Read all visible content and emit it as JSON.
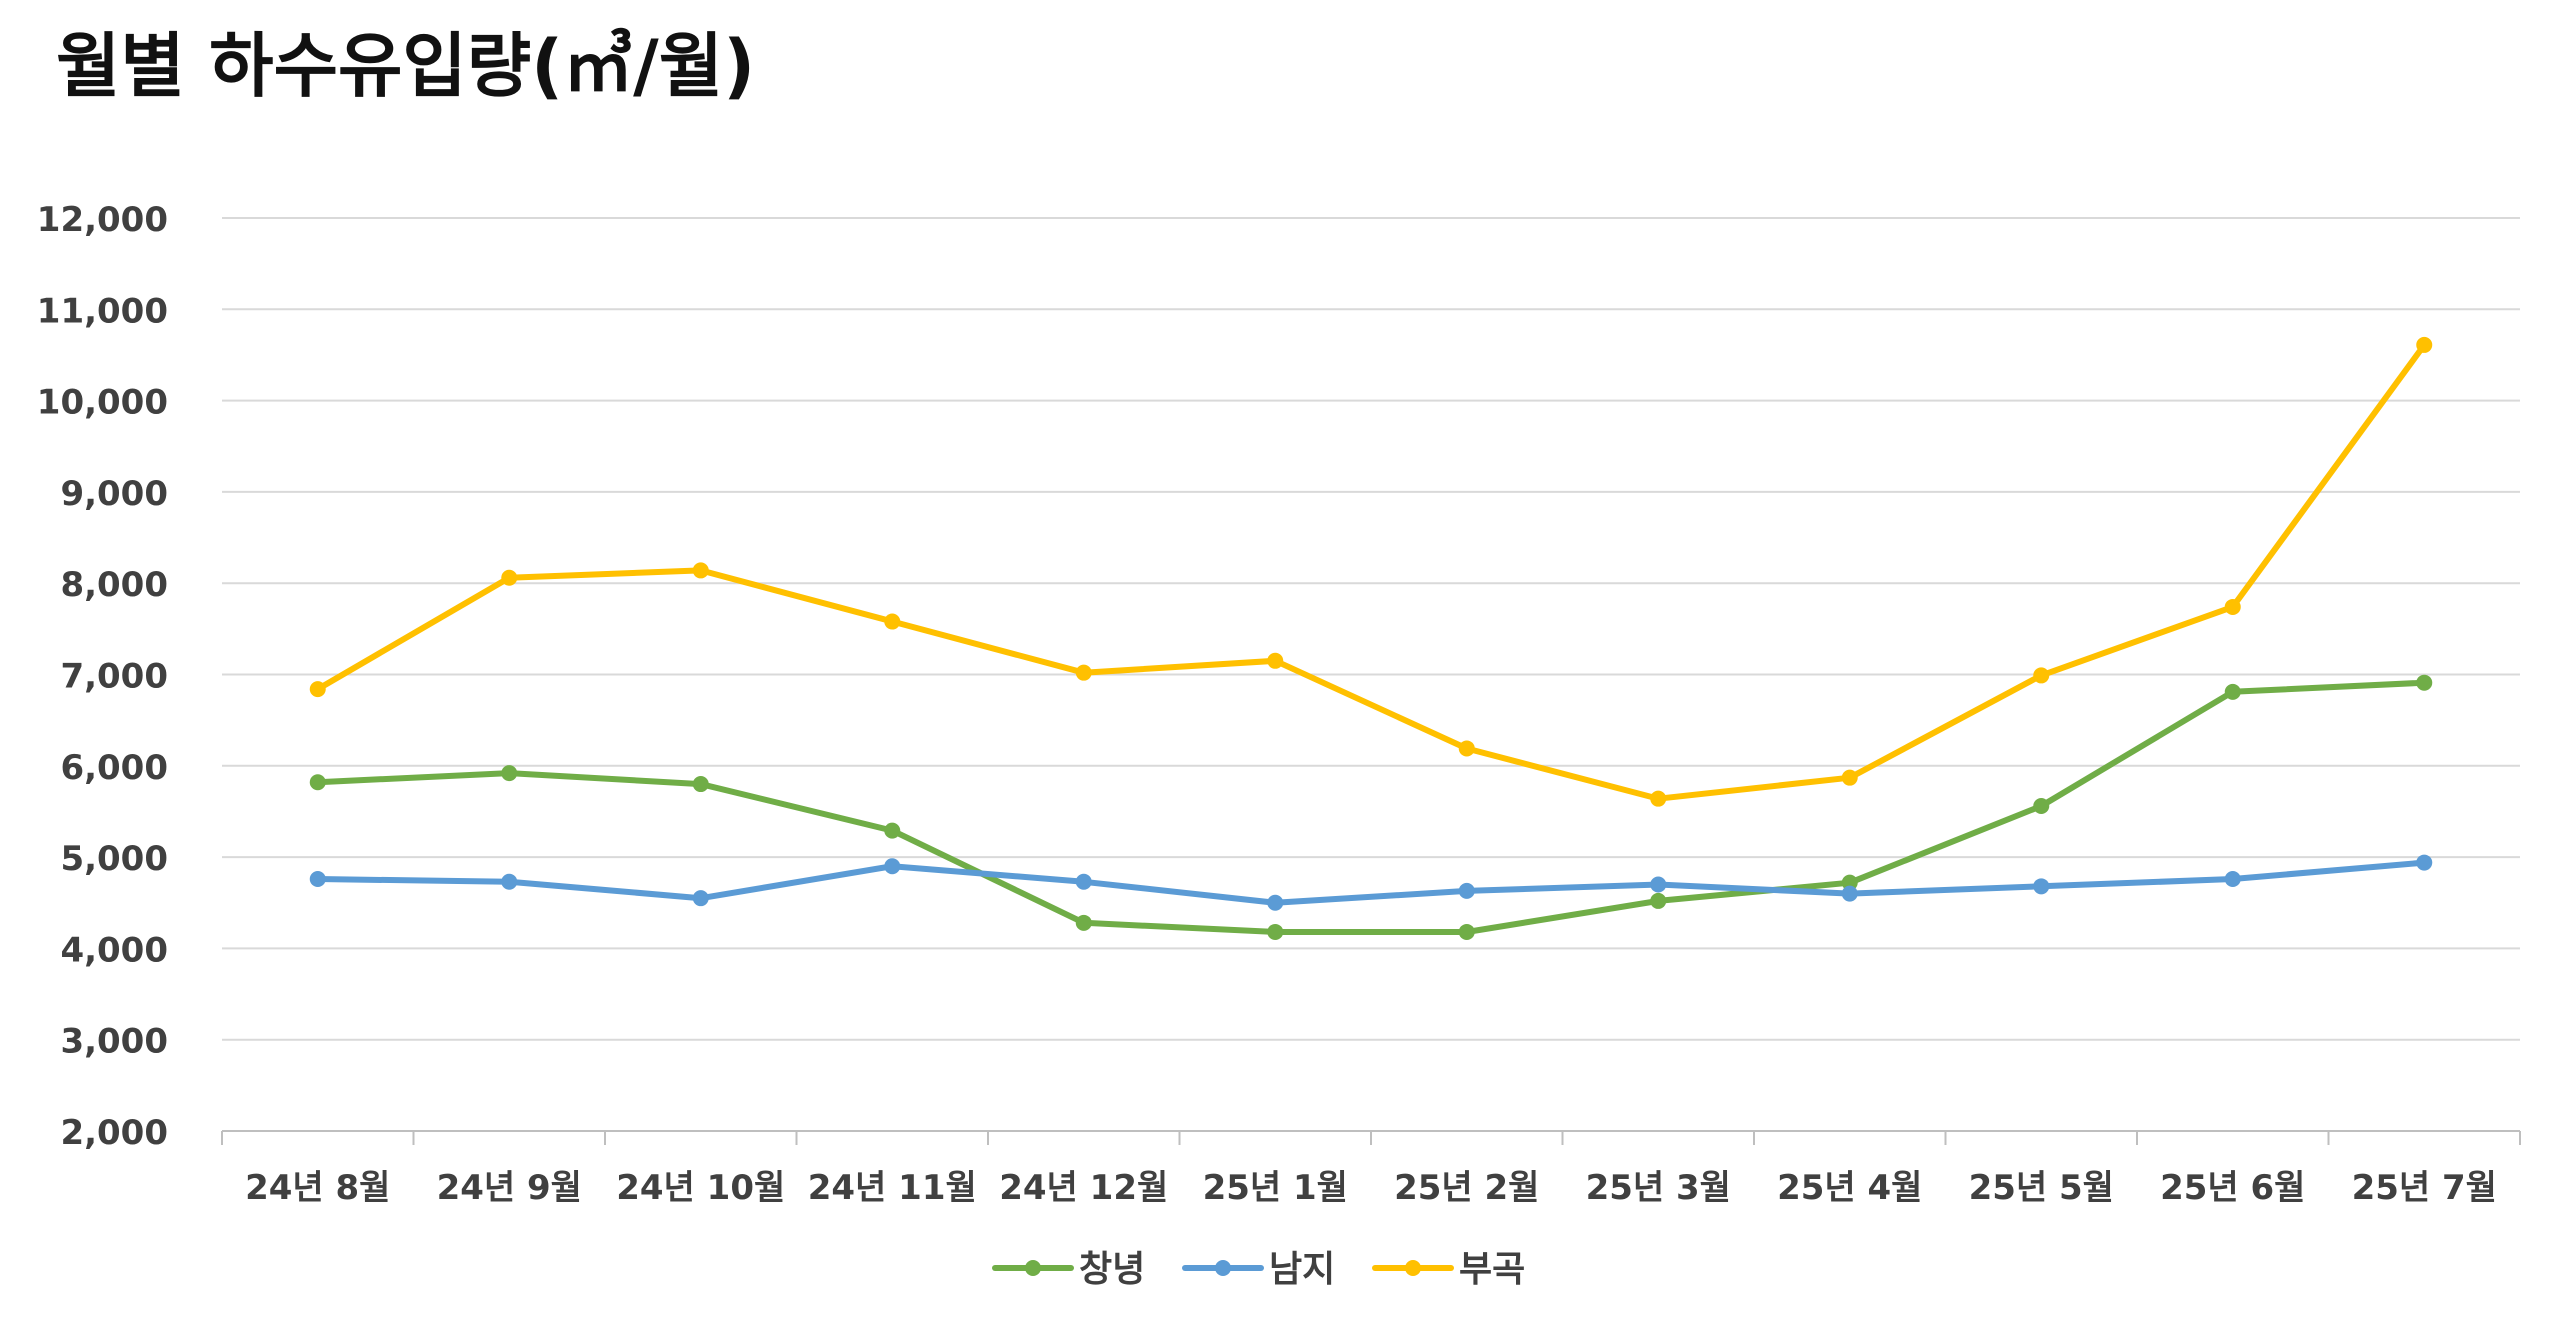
{
  "chart_data": {
    "type": "line",
    "title": "월별 하수유입량(㎥/월)",
    "xlabel": "",
    "ylabel": "",
    "categories": [
      "24년 8월",
      "24년 9월",
      "24년 10월",
      "24년 11월",
      "24년 12월",
      "25년 1월",
      "25년 2월",
      "25년 3월",
      "25년 4월",
      "25년 5월",
      "25년 6월",
      "25년 7월"
    ],
    "ylim": [
      2000,
      12000
    ],
    "yticks": [
      2000,
      3000,
      4000,
      5000,
      6000,
      7000,
      8000,
      9000,
      10000,
      11000,
      12000
    ],
    "ytick_labels": [
      "2,000",
      "3,000",
      "4,000",
      "5,000",
      "6,000",
      "7,000",
      "8,000",
      "9,000",
      "10,000",
      "11,000",
      "12,000"
    ],
    "grid": true,
    "legend": "bottom",
    "series": [
      {
        "name": "창녕",
        "color": "#70AD47",
        "values": [
          5820,
          5920,
          5800,
          5290,
          4280,
          4180,
          4180,
          4520,
          4720,
          5560,
          6810,
          6910
        ]
      },
      {
        "name": "남지",
        "color": "#5B9BD5",
        "values": [
          4760,
          4730,
          4550,
          4900,
          4730,
          4500,
          4630,
          4700,
          4600,
          4680,
          4760,
          4940
        ]
      },
      {
        "name": "부곡",
        "color": "#FFC000",
        "values": [
          6840,
          8060,
          8140,
          7580,
          7020,
          7150,
          6190,
          5640,
          5870,
          6990,
          7740,
          10610
        ]
      }
    ]
  }
}
